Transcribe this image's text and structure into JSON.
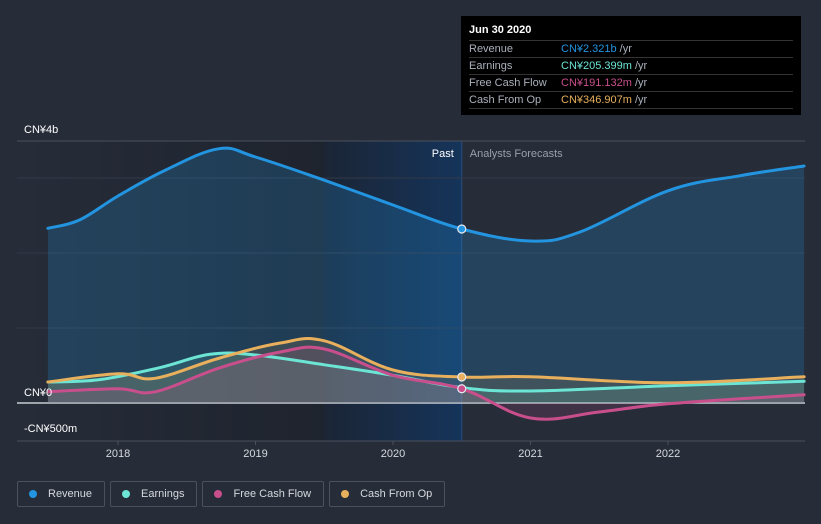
{
  "tooltip": {
    "date": "Jun 30 2020",
    "rows": [
      {
        "label": "Revenue",
        "value": "CN¥2.321b",
        "unit": "/yr",
        "color": "#2394df"
      },
      {
        "label": "Earnings",
        "value": "CN¥205.399m",
        "unit": "/yr",
        "color": "#6ce5d5"
      },
      {
        "label": "Free Cash Flow",
        "value": "CN¥191.132m",
        "unit": "/yr",
        "color": "#c94f8c"
      },
      {
        "label": "Cash From Op",
        "value": "CN¥346.907m",
        "unit": "/yr",
        "color": "#e8b05c"
      }
    ]
  },
  "legend": [
    {
      "label": "Revenue",
      "color": "#2394df"
    },
    {
      "label": "Earnings",
      "color": "#6ce5d5"
    },
    {
      "label": "Free Cash Flow",
      "color": "#c94f8c"
    },
    {
      "label": "Cash From Op",
      "color": "#e8b05c"
    }
  ],
  "chart_data": {
    "type": "line",
    "title": "",
    "xlabel": "",
    "ylabel": "",
    "y_unit": "CN¥ billions",
    "ylim": [
      -0.5,
      3.49
    ],
    "xlim": [
      2017.3,
      2022.97
    ],
    "y_tick_labels": [
      {
        "value": 3.49,
        "label": "CN¥4b"
      },
      {
        "value": 0,
        "label": "CN¥0"
      },
      {
        "value": -0.5,
        "label": "-CN¥500m"
      }
    ],
    "y_gridlines": [
      0,
      1,
      2,
      3
    ],
    "x_ticks": [
      2018,
      2019,
      2020,
      2021,
      2022
    ],
    "x_tick_labels": [
      "2018",
      "2019",
      "2020",
      "2021",
      "2022"
    ],
    "grid": true,
    "legend_position": "bottom-left",
    "annotations": {
      "past_label": "Past",
      "forecast_label": "Analysts Forecasts",
      "divider_x": 2020.5,
      "highlight_start_x": 2019.5
    },
    "series": [
      {
        "name": "Revenue",
        "color": "#2394df",
        "x": [
          2017.49,
          2017.72,
          2018.0,
          2018.34,
          2018.73,
          2019.0,
          2019.5,
          2020.0,
          2020.5,
          2021.0,
          2021.36,
          2022.0,
          2022.52,
          2022.99
        ],
        "values": [
          2.33,
          2.44,
          2.76,
          3.1,
          3.39,
          3.28,
          2.97,
          2.64,
          2.32,
          2.16,
          2.28,
          2.83,
          3.03,
          3.16
        ]
      },
      {
        "name": "Earnings",
        "color": "#6ce5d5",
        "x": [
          2017.49,
          2017.86,
          2018.3,
          2018.67,
          2019.0,
          2019.5,
          2020.0,
          2020.5,
          2021.0,
          2022.0,
          2022.99
        ],
        "values": [
          0.28,
          0.31,
          0.47,
          0.65,
          0.64,
          0.51,
          0.37,
          0.205,
          0.16,
          0.23,
          0.29
        ]
      },
      {
        "name": "Free Cash Flow",
        "color": "#c94f8c",
        "x": [
          2017.49,
          2018.0,
          2018.27,
          2018.74,
          2019.18,
          2019.5,
          2020.0,
          2020.5,
          2021.0,
          2021.5,
          2022.0,
          2022.99
        ],
        "values": [
          0.15,
          0.19,
          0.15,
          0.47,
          0.68,
          0.72,
          0.37,
          0.19,
          -0.2,
          -0.12,
          -0.01,
          0.11
        ]
      },
      {
        "name": "Cash From Op",
        "color": "#e8b05c",
        "x": [
          2017.49,
          2018.0,
          2018.27,
          2018.74,
          2019.18,
          2019.5,
          2020.0,
          2020.5,
          2021.0,
          2022.0,
          2022.99
        ],
        "values": [
          0.28,
          0.39,
          0.33,
          0.6,
          0.8,
          0.83,
          0.44,
          0.347,
          0.35,
          0.27,
          0.35
        ]
      }
    ],
    "highlight_point_x": 2020.5
  }
}
